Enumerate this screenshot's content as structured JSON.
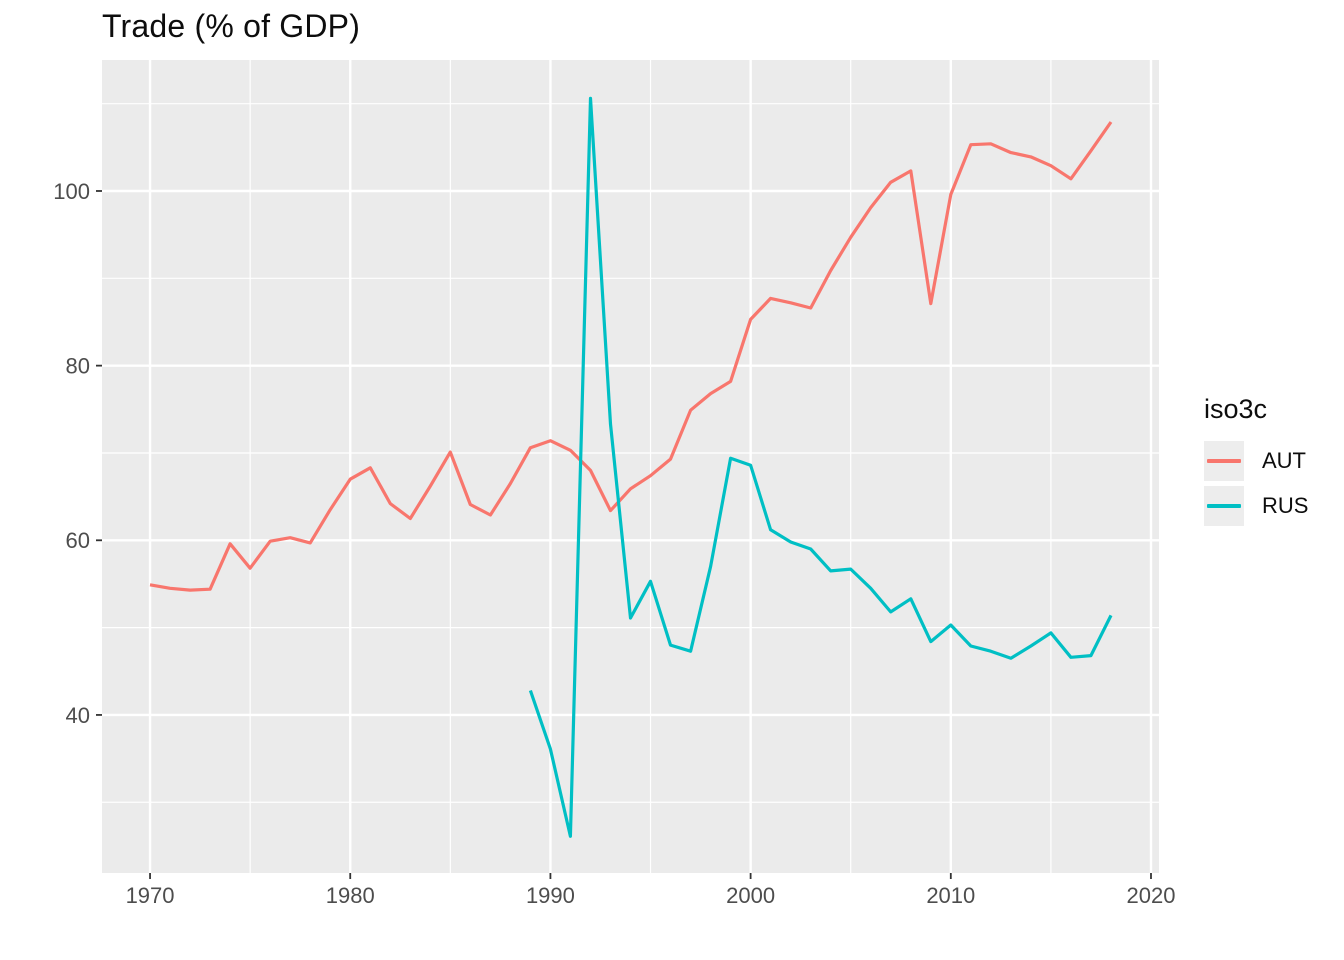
{
  "header": {
    "title": "Trade (% of GDP)"
  },
  "legend": {
    "title": "iso3c",
    "entries": [
      {
        "label": "AUT",
        "color": "#F8766D"
      },
      {
        "label": "RUS",
        "color": "#00BFC4"
      }
    ]
  },
  "chart_data": {
    "type": "line",
    "title": "Trade (% of GDP)",
    "xlabel": "",
    "ylabel": "",
    "xlim": [
      1967.6,
      2020.4
    ],
    "ylim": [
      21.9,
      115.0
    ],
    "x_major_ticks": [
      1970,
      1980,
      1990,
      2000,
      2010,
      2020
    ],
    "x_minor_ticks": [
      1975,
      1985,
      1995,
      2005,
      2015
    ],
    "y_major_ticks": [
      40,
      60,
      80,
      100
    ],
    "y_minor_ticks": [
      30,
      50,
      70,
      90,
      110
    ],
    "grid": "major+minor",
    "legend_position": "right",
    "legend_title": "iso3c",
    "panel_background": "#EBEBEB",
    "grid_color": "#FFFFFF",
    "tick_color": "#333333",
    "tick_label_color": "#4D4D4D",
    "series": [
      {
        "name": "AUT",
        "color": "#F8766D",
        "x": [
          1970,
          1971,
          1972,
          1973,
          1974,
          1975,
          1976,
          1977,
          1978,
          1979,
          1980,
          1981,
          1982,
          1983,
          1984,
          1985,
          1986,
          1987,
          1988,
          1989,
          1990,
          1991,
          1992,
          1993,
          1994,
          1995,
          1996,
          1997,
          1998,
          1999,
          2000,
          2001,
          2002,
          2003,
          2004,
          2005,
          2006,
          2007,
          2008,
          2009,
          2010,
          2011,
          2012,
          2013,
          2014,
          2015,
          2016,
          2017,
          2018
        ],
        "values": [
          54.9,
          54.5,
          54.3,
          54.4,
          59.6,
          56.8,
          59.9,
          60.3,
          59.7,
          63.5,
          67.0,
          68.3,
          64.2,
          62.5,
          66.2,
          70.1,
          64.1,
          62.9,
          66.5,
          70.6,
          71.4,
          70.3,
          68.0,
          63.4,
          65.9,
          67.4,
          69.3,
          74.9,
          76.8,
          78.2,
          85.3,
          87.7,
          87.2,
          86.6,
          90.9,
          94.7,
          98.1,
          101.0,
          102.3,
          87.1,
          99.6,
          105.3,
          105.4,
          104.4,
          103.9,
          102.9,
          101.4,
          104.6,
          107.9
        ]
      },
      {
        "name": "RUS",
        "color": "#00BFC4",
        "x": [
          1989,
          1990,
          1991,
          1992,
          1993,
          1994,
          1995,
          1996,
          1997,
          1998,
          1999,
          2000,
          2001,
          2002,
          2003,
          2004,
          2005,
          2006,
          2007,
          2008,
          2009,
          2010,
          2011,
          2012,
          2013,
          2014,
          2015,
          2016,
          2017,
          2018
        ],
        "values": [
          42.8,
          36.1,
          26.1,
          110.6,
          73.3,
          51.1,
          55.3,
          48.0,
          47.3,
          57.0,
          69.4,
          68.6,
          61.2,
          59.8,
          59.0,
          56.5,
          56.7,
          54.5,
          51.8,
          53.3,
          48.4,
          50.3,
          47.9,
          47.3,
          46.5,
          47.9,
          49.4,
          46.6,
          46.8,
          51.4
        ]
      }
    ]
  }
}
